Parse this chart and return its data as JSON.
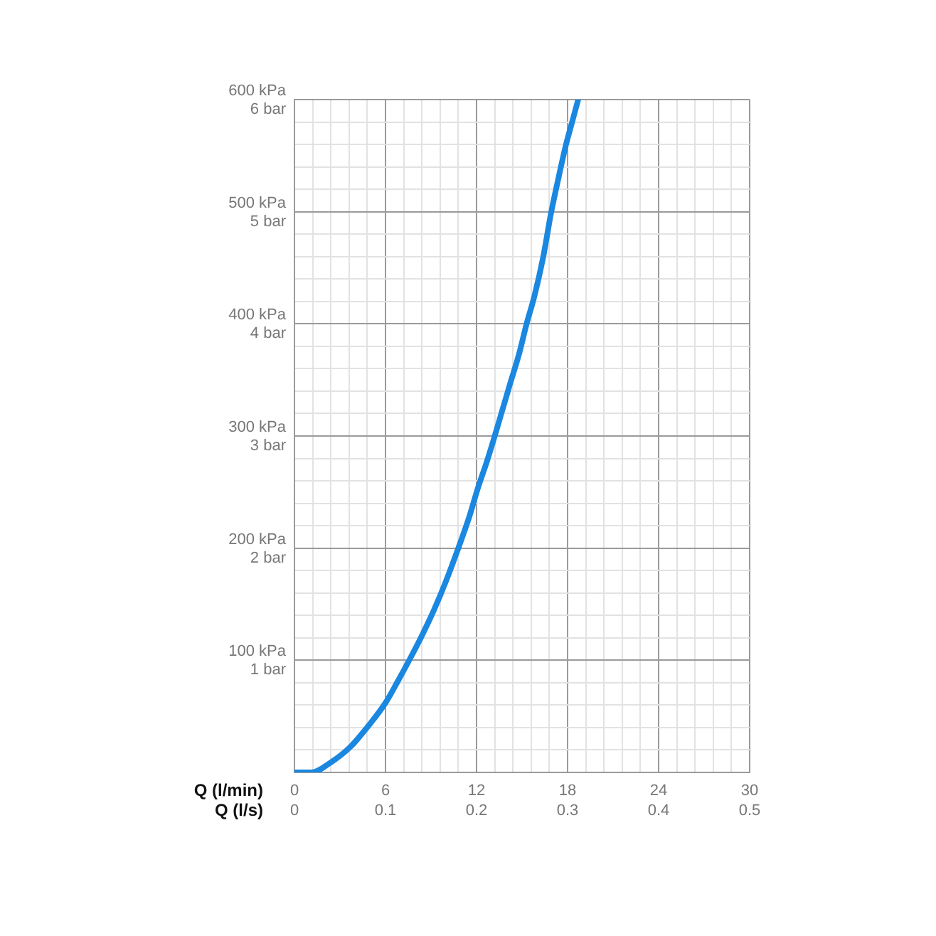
{
  "chart_data": {
    "type": "line",
    "xlabel": "Q (l/min)",
    "x2label": "Q (l/s)",
    "x": [
      0,
      1.1,
      2.4,
      3.7,
      4.9,
      6,
      6.8,
      7.6,
      8.4,
      9.2,
      10,
      10.8,
      11.5,
      12.1,
      12.7,
      13.2,
      13.7,
      14.2,
      14.8,
      15.3,
      15.8,
      16.4,
      16.9,
      17.4,
      17.9,
      18.3,
      18.7
    ],
    "series": [
      {
        "color": "#1a87e0",
        "values": [
          0,
          0,
          9,
          23,
          42,
          62,
          81,
          101,
          122,
          145,
          171,
          200,
          227,
          254,
          278,
          300,
          323,
          346,
          373,
          400,
          424,
          460,
          498,
          530,
          560,
          580,
          600
        ]
      }
    ],
    "xlim": [
      0,
      30
    ],
    "ylim": [
      0,
      600
    ],
    "x2lim": [
      0,
      0.5
    ],
    "y2lim": [
      0,
      6
    ],
    "xticks": [
      0,
      {
        "value": 1.2,
        "label": null
      },
      {
        "value": 2.4,
        "label": null
      },
      {
        "value": 3.6,
        "label": null
      },
      {
        "value": 4.8,
        "label": null
      },
      6,
      {
        "value": 7.2,
        "label": null
      },
      {
        "value": 8.4,
        "label": null
      },
      {
        "value": 9.6,
        "label": null
      },
      {
        "value": 10.8,
        "label": null
      },
      12,
      {
        "value": 13.2,
        "label": null
      },
      {
        "value": 14.4,
        "label": null
      },
      {
        "value": 15.6,
        "label": null
      },
      {
        "value": 16.8,
        "label": null
      },
      18,
      {
        "value": 19.2,
        "label": null
      },
      {
        "value": 20.4,
        "label": null
      },
      {
        "value": 21.6,
        "label": null
      },
      {
        "value": 22.8,
        "label": null
      },
      24,
      {
        "value": 25.2,
        "label": null
      },
      {
        "value": 26.4,
        "label": null
      },
      {
        "value": 27.6,
        "label": null
      },
      {
        "value": 28.8,
        "label": null
      },
      30
    ],
    "x2ticks": [
      0,
      0.1,
      0.2,
      0.3,
      0.4,
      0.5
    ],
    "yticks": [
      {
        "value": 0,
        "label": null
      },
      {
        "value": 20,
        "label": null
      },
      {
        "value": 40,
        "label": null
      },
      {
        "value": 60,
        "label": null
      },
      {
        "value": 80,
        "label": null
      },
      {
        "value": 100,
        "label": "100 kPa"
      },
      {
        "value": 120,
        "label": null
      },
      {
        "value": 140,
        "label": null
      },
      {
        "value": 160,
        "label": null
      },
      {
        "value": 180,
        "label": null
      },
      {
        "value": 200,
        "label": "200 kPa"
      },
      {
        "value": 220,
        "label": null
      },
      {
        "value": 240,
        "label": null
      },
      {
        "value": 260,
        "label": null
      },
      {
        "value": 280,
        "label": null
      },
      {
        "value": 300,
        "label": "300 kPa"
      },
      {
        "value": 320,
        "label": null
      },
      {
        "value": 340,
        "label": null
      },
      {
        "value": 360,
        "label": null
      },
      {
        "value": 380,
        "label": null
      },
      {
        "value": 400,
        "label": "400 kPa"
      },
      {
        "value": 420,
        "label": null
      },
      {
        "value": 440,
        "label": null
      },
      {
        "value": 460,
        "label": null
      },
      {
        "value": 480,
        "label": null
      },
      {
        "value": 500,
        "label": "500 kPa"
      },
      {
        "value": 520,
        "label": null
      },
      {
        "value": 540,
        "label": null
      },
      {
        "value": 560,
        "label": null
      },
      {
        "value": 580,
        "label": null
      },
      {
        "value": 600,
        "label": "600 kPa"
      }
    ],
    "y2ticks": [
      {
        "value": 1,
        "label": "1 bar"
      },
      {
        "value": 2,
        "label": "2 bar"
      },
      {
        "value": 3,
        "label": "3 bar"
      },
      {
        "value": 4,
        "label": "4 bar"
      },
      {
        "value": 5,
        "label": "5 bar"
      },
      {
        "value": 6,
        "label": "6 bar"
      }
    ],
    "grid": true,
    "marker": "none",
    "line_style": "solid",
    "legend": false
  }
}
